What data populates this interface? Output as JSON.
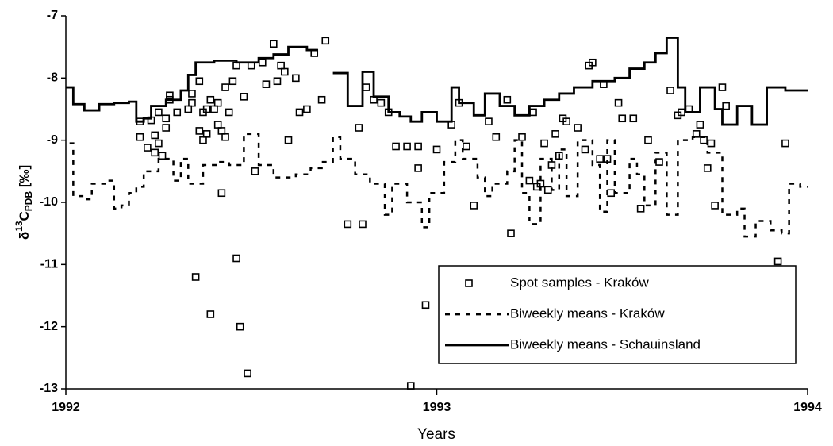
{
  "chart_data": {
    "type": "line",
    "y_label": [
      "δ",
      "13",
      "C",
      "PDB",
      " [‰]"
    ],
    "x_label": "Years",
    "xlim": [
      1992,
      1994
    ],
    "xticks": [
      1992,
      1993,
      1994
    ],
    "ylim": [
      -13,
      -7
    ],
    "yticks": [
      -7,
      -8,
      -9,
      -10,
      -11,
      -12,
      -13
    ],
    "grid": false,
    "legend": "lower right",
    "series": [
      {
        "name": "Spot samples - Kraków",
        "type": "scatter",
        "marker": "square",
        "color": "#000000",
        "x": [
          1992.2,
          1992.2,
          1992.22,
          1992.23,
          1992.24,
          1992.24,
          1992.25,
          1992.25,
          1992.26,
          1992.27,
          1992.27,
          1992.28,
          1992.28,
          1992.3,
          1992.33,
          1992.34,
          1992.34,
          1992.35,
          1992.36,
          1992.36,
          1992.37,
          1992.37,
          1992.38,
          1992.38,
          1992.39,
          1992.39,
          1992.4,
          1992.41,
          1992.41,
          1992.42,
          1992.42,
          1992.43,
          1992.43,
          1992.44,
          1992.45,
          1992.46,
          1992.46,
          1992.47,
          1992.48,
          1992.49,
          1992.5,
          1992.51,
          1992.53,
          1992.54,
          1992.56,
          1992.57,
          1992.58,
          1992.59,
          1992.6,
          1992.62,
          1992.63,
          1992.65,
          1992.67,
          1992.69,
          1992.7,
          1992.76,
          1992.79,
          1992.8,
          1992.81,
          1992.83,
          1992.85,
          1992.87,
          1992.89,
          1992.92,
          1992.93,
          1992.95,
          1992.95,
          1992.97,
          1993.0,
          1993.04,
          1993.06,
          1993.08,
          1993.1,
          1993.14,
          1993.16,
          1993.19,
          1993.2,
          1993.23,
          1993.25,
          1993.26,
          1993.27,
          1993.28,
          1993.29,
          1993.3,
          1993.31,
          1993.32,
          1993.33,
          1993.34,
          1993.35,
          1993.38,
          1993.4,
          1993.41,
          1993.42,
          1993.44,
          1993.45,
          1993.46,
          1993.47,
          1993.49,
          1993.5,
          1993.53,
          1993.55,
          1993.57,
          1993.6,
          1993.63,
          1993.65,
          1993.66,
          1993.68,
          1993.7,
          1993.71,
          1993.72,
          1993.73,
          1993.74,
          1993.75,
          1993.77,
          1993.78,
          1993.92,
          1993.94
        ],
        "values": [
          -8.7,
          -8.95,
          -9.12,
          -8.68,
          -8.92,
          -9.2,
          -8.55,
          -9.05,
          -9.25,
          -8.8,
          -8.65,
          -8.35,
          -8.28,
          -8.55,
          -8.5,
          -8.4,
          -8.25,
          -11.2,
          -8.05,
          -8.85,
          -8.55,
          -9.0,
          -8.5,
          -8.9,
          -11.8,
          -8.35,
          -8.5,
          -8.75,
          -8.4,
          -8.85,
          -9.85,
          -8.95,
          -8.15,
          -8.55,
          -8.05,
          -10.9,
          -7.8,
          -12.0,
          -8.3,
          -12.75,
          -7.8,
          -9.5,
          -7.75,
          -8.1,
          -7.45,
          -8.05,
          -7.8,
          -7.9,
          -9.0,
          -8.0,
          -8.55,
          -8.5,
          -7.6,
          -8.35,
          -7.4,
          -10.35,
          -8.8,
          -10.35,
          -8.15,
          -8.35,
          -8.4,
          -8.55,
          -9.1,
          -9.1,
          -12.95,
          -9.1,
          -9.45,
          -11.65,
          -9.15,
          -8.75,
          -8.4,
          -9.1,
          -10.05,
          -8.7,
          -8.95,
          -8.35,
          -10.5,
          -8.95,
          -9.65,
          -8.55,
          -9.75,
          -9.7,
          -9.05,
          -9.8,
          -9.4,
          -8.9,
          -9.25,
          -8.65,
          -8.7,
          -8.8,
          -9.15,
          -7.8,
          -7.75,
          -9.3,
          -8.1,
          -9.3,
          -9.85,
          -8.4,
          -8.65,
          -8.65,
          -10.1,
          -9.0,
          -9.35,
          -8.2,
          -8.6,
          -8.55,
          -8.5,
          -8.9,
          -8.75,
          -9.0,
          -9.45,
          -9.05,
          -10.05,
          -8.15,
          -8.45,
          -10.95,
          -9.05
        ]
      },
      {
        "name": "Biweekly means - Kraków",
        "type": "step",
        "style": "dashed",
        "color": "#000000",
        "x": [
          1992.01,
          1992.02,
          1992.05,
          1992.07,
          1992.11,
          1992.13,
          1992.15,
          1992.17,
          1992.19,
          1992.21,
          1992.25,
          1992.29,
          1992.31,
          1992.33,
          1992.37,
          1992.41,
          1992.44,
          1992.48,
          1992.52,
          1992.56,
          1992.62,
          1992.66,
          1992.69,
          1992.72,
          1992.74,
          1992.78,
          1992.82,
          1992.86,
          1992.88,
          1992.92,
          1992.96,
          1992.98,
          1993.02,
          1993.05,
          1993.07,
          1993.11,
          1993.13,
          1993.15,
          1993.19,
          1993.21,
          1993.23,
          1993.25,
          1993.28,
          1993.31,
          1993.33,
          1993.35,
          1993.38,
          1993.42,
          1993.44,
          1993.46,
          1993.48,
          1993.52,
          1993.54,
          1993.56,
          1993.59,
          1993.62,
          1993.65,
          1993.69,
          1993.73,
          1993.77,
          1993.81,
          1993.83,
          1993.86,
          1993.9,
          1993.93,
          1993.95,
          1993.98,
          1994.0
        ],
        "values": [
          -9.05,
          -9.9,
          -9.95,
          -9.7,
          -9.65,
          -10.1,
          -10.05,
          -9.85,
          -9.75,
          -9.5,
          -9.3,
          -9.65,
          -9.3,
          -9.7,
          -9.4,
          -9.35,
          -9.4,
          -8.9,
          -9.4,
          -9.6,
          -9.55,
          -9.45,
          -9.35,
          -8.95,
          -9.3,
          -9.55,
          -9.7,
          -10.2,
          -9.7,
          -10.0,
          -10.4,
          -9.85,
          -9.35,
          -9.0,
          -9.3,
          -9.6,
          -9.9,
          -9.7,
          -9.5,
          -9.0,
          -9.85,
          -10.35,
          -9.3,
          -9.8,
          -9.15,
          -9.9,
          -9.0,
          -9.4,
          -10.15,
          -9.0,
          -9.85,
          -9.3,
          -9.55,
          -10.05,
          -9.2,
          -10.2,
          -9.0,
          -8.95,
          -9.2,
          -10.2,
          -10.1,
          -10.55,
          -10.3,
          -10.45,
          -10.5,
          -9.7,
          -9.75,
          -9.75
        ]
      },
      {
        "name": "Biweekly means - Schauinsland",
        "type": "step",
        "style": "solid",
        "color": "#000000",
        "x": [
          1992.0,
          1992.02,
          1992.05,
          1992.09,
          1992.13,
          1992.17,
          1992.19,
          1992.21,
          1992.23,
          1992.27,
          1992.31,
          1992.33,
          1992.35,
          1992.4,
          1992.46,
          1992.52,
          1992.56,
          1992.6,
          1992.65,
          1992.68,
          1992.72,
          1992.76,
          1992.8,
          1992.83,
          1992.87,
          1992.9,
          1992.93,
          1992.96,
          1993.0,
          1993.04,
          1993.06,
          1993.1,
          1993.13,
          1993.17,
          1993.21,
          1993.25,
          1993.29,
          1993.33,
          1993.37,
          1993.42,
          1993.48,
          1993.52,
          1993.56,
          1993.59,
          1993.62,
          1993.65,
          1993.67,
          1993.71,
          1993.75,
          1993.77,
          1993.81,
          1993.85,
          1993.89,
          1993.94,
          1994.0
        ],
        "values": [
          -8.15,
          -8.42,
          -8.52,
          -8.42,
          -8.4,
          -8.38,
          -8.7,
          -8.65,
          -8.45,
          -8.35,
          -8.2,
          -7.95,
          -7.75,
          -7.72,
          -7.75,
          -7.68,
          -7.62,
          -7.5,
          -7.55,
          null,
          -7.92,
          -8.45,
          -7.9,
          -8.3,
          -8.55,
          -8.62,
          -8.7,
          -8.55,
          -8.7,
          -8.15,
          -8.4,
          -8.6,
          -8.25,
          -8.45,
          -8.6,
          -8.45,
          -8.35,
          -8.25,
          -8.15,
          -8.05,
          -8.0,
          -7.85,
          -7.75,
          -7.6,
          -7.35,
          -8.15,
          -8.55,
          -8.15,
          -8.5,
          -8.75,
          -8.45,
          -8.75,
          -8.15,
          -8.2,
          -8.2
        ]
      }
    ]
  }
}
